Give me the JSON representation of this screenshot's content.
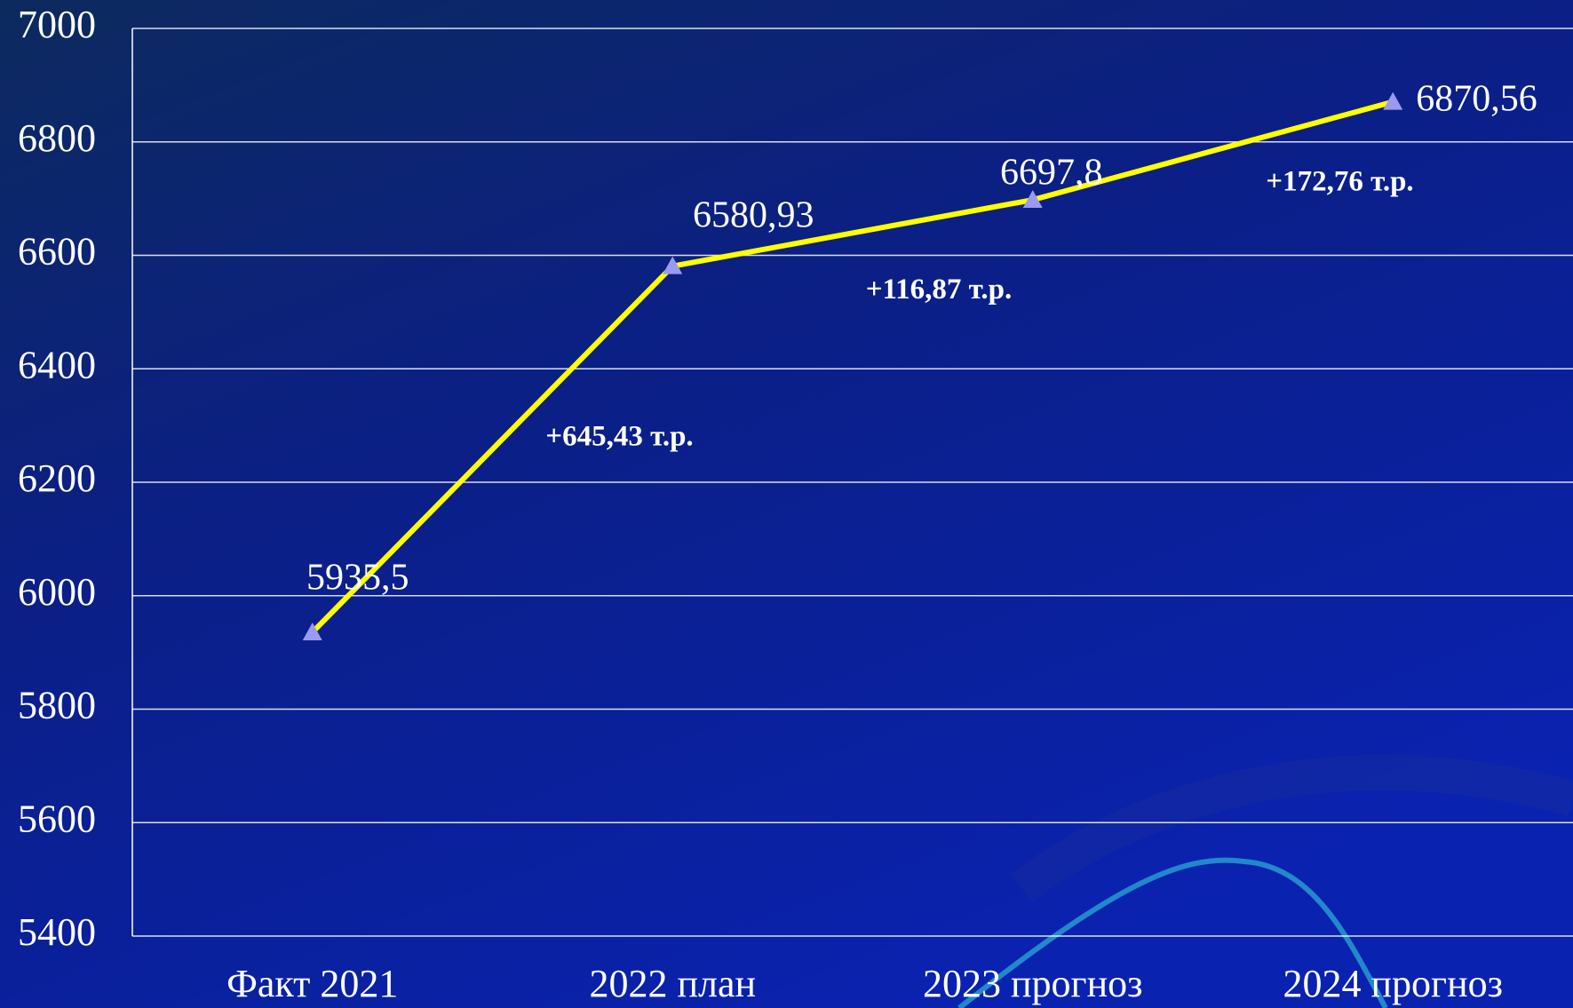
{
  "chart_data": {
    "type": "line",
    "categories": [
      "Факт 2021",
      "2022 план",
      "2023 прогноз",
      "2024 прогноз"
    ],
    "values": [
      5935.5,
      6580.93,
      6697.8,
      6870.56
    ],
    "value_labels": [
      "5935,5",
      "6580,93",
      "6697,8",
      "6870,56"
    ],
    "annotations": [
      "+645,43 т.р.",
      "+116,87 т.р.",
      "+172,76 т.р."
    ],
    "color": "#ffff00",
    "marker_color": "#9a9af0",
    "ylim": [
      5400,
      7000
    ],
    "yticks": [
      5400,
      5600,
      5800,
      6000,
      6200,
      6400,
      6600,
      6800,
      7000
    ],
    "grid": true
  }
}
